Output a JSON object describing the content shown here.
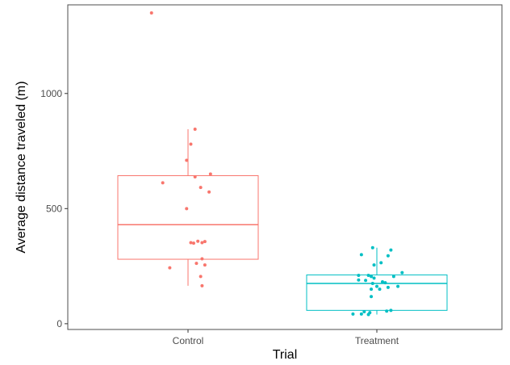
{
  "chart_data": {
    "type": "boxplot",
    "xlabel": "Trial",
    "ylabel": "Average distance traveled (m)",
    "ylim": [
      -25,
      1385
    ],
    "yticks": [
      0,
      500,
      1000
    ],
    "categories": [
      "Control",
      "Treatment"
    ],
    "grid": false,
    "legend": "none",
    "series": [
      {
        "name": "Control",
        "color": "#F8766D",
        "box": {
          "min": 165,
          "q1": 280,
          "median": 430,
          "q3": 643,
          "max": 845
        },
        "points": [
          {
            "x": -0.26,
            "y": 1350
          },
          {
            "x": 0.05,
            "y": 845
          },
          {
            "x": 0.02,
            "y": 780
          },
          {
            "x": -0.01,
            "y": 710
          },
          {
            "x": 0.16,
            "y": 650
          },
          {
            "x": 0.05,
            "y": 638
          },
          {
            "x": -0.18,
            "y": 612
          },
          {
            "x": 0.09,
            "y": 592
          },
          {
            "x": 0.15,
            "y": 572
          },
          {
            "x": -0.01,
            "y": 500
          },
          {
            "x": 0.07,
            "y": 358
          },
          {
            "x": 0.12,
            "y": 357
          },
          {
            "x": 0.02,
            "y": 352
          },
          {
            "x": 0.04,
            "y": 350
          },
          {
            "x": 0.1,
            "y": 352
          },
          {
            "x": 0.1,
            "y": 282
          },
          {
            "x": 0.06,
            "y": 262
          },
          {
            "x": 0.12,
            "y": 255
          },
          {
            "x": -0.13,
            "y": 243
          },
          {
            "x": 0.09,
            "y": 205
          },
          {
            "x": 0.1,
            "y": 165
          }
        ]
      },
      {
        "name": "Treatment",
        "color": "#00BFC4",
        "box": {
          "min": 40,
          "q1": 58,
          "median": 175,
          "q3": 212,
          "max": 330
        },
        "points": [
          {
            "x": -0.03,
            "y": 330
          },
          {
            "x": 0.1,
            "y": 320
          },
          {
            "x": -0.11,
            "y": 300
          },
          {
            "x": 0.08,
            "y": 295
          },
          {
            "x": 0.03,
            "y": 265
          },
          {
            "x": -0.02,
            "y": 255
          },
          {
            "x": 0.18,
            "y": 222
          },
          {
            "x": -0.13,
            "y": 210
          },
          {
            "x": -0.06,
            "y": 210
          },
          {
            "x": -0.04,
            "y": 205
          },
          {
            "x": 0.12,
            "y": 205
          },
          {
            "x": -0.02,
            "y": 198
          },
          {
            "x": -0.13,
            "y": 190
          },
          {
            "x": -0.08,
            "y": 188
          },
          {
            "x": 0.04,
            "y": 182
          },
          {
            "x": 0.06,
            "y": 178
          },
          {
            "x": -0.03,
            "y": 175
          },
          {
            "x": 0.0,
            "y": 162
          },
          {
            "x": 0.15,
            "y": 162
          },
          {
            "x": 0.08,
            "y": 158
          },
          {
            "x": 0.02,
            "y": 150
          },
          {
            "x": -0.04,
            "y": 150
          },
          {
            "x": -0.04,
            "y": 118
          },
          {
            "x": 0.1,
            "y": 58
          },
          {
            "x": 0.07,
            "y": 55
          },
          {
            "x": -0.09,
            "y": 52
          },
          {
            "x": -0.05,
            "y": 48
          },
          {
            "x": -0.11,
            "y": 42
          },
          {
            "x": -0.17,
            "y": 42
          },
          {
            "x": -0.06,
            "y": 40
          }
        ]
      }
    ]
  }
}
